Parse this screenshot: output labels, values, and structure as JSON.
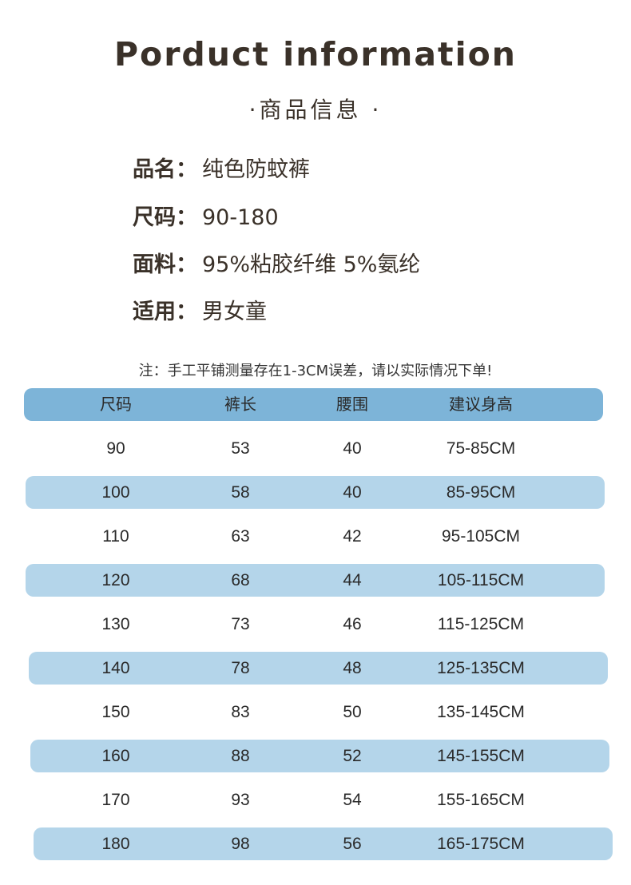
{
  "title": "Porduct information",
  "subtitle": "·商品信息 ·",
  "info": [
    {
      "label": "品名：",
      "value": "纯色防蚊裤"
    },
    {
      "label": "尺码：",
      "value": "90-180"
    },
    {
      "label": "面料：",
      "value": "95%粘胶纤维 5%氨纶"
    },
    {
      "label": "适用：",
      "value": "男女童"
    }
  ],
  "note": "注：手工平铺测量存在1-3CM误差，请以实际情况下单!",
  "colors": {
    "header_band": "#7db4d8",
    "alt_band": "#b4d5ea",
    "title": "#3a3129"
  },
  "table": {
    "headers": [
      "尺码",
      "裤长",
      "腰围",
      "建议身高"
    ],
    "rows": [
      [
        "90",
        "53",
        "40",
        "75-85CM"
      ],
      [
        "100",
        "58",
        "40",
        "85-95CM"
      ],
      [
        "110",
        "63",
        "42",
        "95-105CM"
      ],
      [
        "120",
        "68",
        "44",
        "105-115CM"
      ],
      [
        "130",
        "73",
        "46",
        "115-125CM"
      ],
      [
        "140",
        "78",
        "48",
        "125-135CM"
      ],
      [
        "150",
        "83",
        "50",
        "135-145CM"
      ],
      [
        "160",
        "88",
        "52",
        "145-155CM"
      ],
      [
        "170",
        "93",
        "54",
        "155-165CM"
      ],
      [
        "180",
        "98",
        "56",
        "165-175CM"
      ]
    ]
  }
}
